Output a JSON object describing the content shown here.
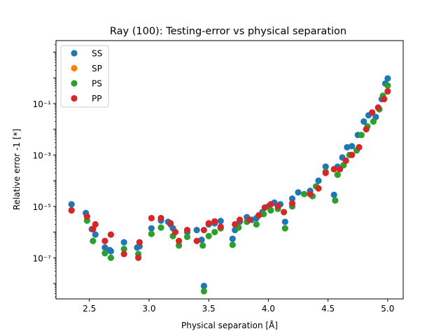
{
  "chart_data": {
    "type": "scatter",
    "title": "Ray (100): Testing-error vs physical separation",
    "xlabel": "Physical separation [Å]",
    "ylabel": "Relative error -1 [*]",
    "xlim": [
      2.22,
      5.13
    ],
    "ylim_log10": [
      -8.6,
      1.45
    ],
    "yscale": "log",
    "x_ticks": [
      2.5,
      3.0,
      3.5,
      4.0,
      4.5,
      5.0
    ],
    "x_tick_labels": [
      "2.5",
      "3.0",
      "3.5",
      "4.0",
      "4.5",
      "5.0"
    ],
    "y_ticks_log10": [
      -7,
      -5,
      -3,
      -1
    ],
    "y_tick_labels": [
      "10⁻⁷",
      "10⁻⁵",
      "10⁻³",
      "10⁻¹"
    ],
    "legend": {
      "position": "top-left"
    },
    "series": [
      {
        "name": "SS",
        "color": "#1f77b4",
        "points": [
          [
            2.35,
            1.2e-05
          ],
          [
            2.47,
            5.5e-06
          ],
          [
            2.48,
            4e-06
          ],
          [
            2.52,
            1.3e-06
          ],
          [
            2.55,
            8e-07
          ],
          [
            2.63,
            2.5e-07
          ],
          [
            2.67,
            2e-07
          ],
          [
            2.68,
            1.8e-07
          ],
          [
            2.79,
            4e-07
          ],
          [
            2.9,
            2.5e-07
          ],
          [
            2.92,
            2.8e-07
          ],
          [
            3.02,
            1.4e-06
          ],
          [
            3.1,
            2.8e-06
          ],
          [
            3.16,
            2.5e-06
          ],
          [
            3.18,
            2e-06
          ],
          [
            3.2,
            1.4e-06
          ],
          [
            3.32,
            1e-06
          ],
          [
            3.4,
            1.2e-06
          ],
          [
            3.44,
            5e-07
          ],
          [
            3.46,
            8e-09
          ],
          [
            3.5,
            2e-06
          ],
          [
            3.55,
            2.2e-06
          ],
          [
            3.6,
            2.7e-06
          ],
          [
            3.7,
            5.5e-07
          ],
          [
            3.72,
            1.2e-06
          ],
          [
            3.76,
            2.5e-06
          ],
          [
            3.82,
            3.8e-06
          ],
          [
            3.86,
            3e-06
          ],
          [
            3.9,
            3.5e-06
          ],
          [
            3.95,
            6e-06
          ],
          [
            4.0,
            1e-05
          ],
          [
            4.05,
            1.4e-05
          ],
          [
            4.1,
            1.2e-05
          ],
          [
            4.14,
            2.5e-06
          ],
          [
            4.2,
            2e-05
          ],
          [
            4.25,
            3.5e-05
          ],
          [
            4.35,
            4e-05
          ],
          [
            4.42,
            0.0001
          ],
          [
            4.48,
            0.00035
          ],
          [
            4.55,
            2.8e-05
          ],
          [
            4.58,
            0.00035
          ],
          [
            4.62,
            0.0008
          ],
          [
            4.66,
            0.002
          ],
          [
            4.7,
            0.0022
          ],
          [
            4.75,
            0.006
          ],
          [
            4.8,
            0.02
          ],
          [
            4.84,
            0.035
          ],
          [
            4.9,
            0.03
          ],
          [
            4.95,
            0.15
          ],
          [
            4.98,
            0.6
          ],
          [
            5.0,
            0.95
          ]
        ]
      },
      {
        "name": "SP",
        "color": "#ff7f0e",
        "points": []
      },
      {
        "name": "PS",
        "color": "#2ca02c",
        "points": [
          [
            2.35,
            7e-06
          ],
          [
            2.48,
            2.8e-06
          ],
          [
            2.53,
            4.5e-07
          ],
          [
            2.63,
            1.5e-07
          ],
          [
            2.68,
            1e-07
          ],
          [
            2.79,
            2.2e-07
          ],
          [
            2.91,
            1.4e-07
          ],
          [
            3.02,
            8.5e-07
          ],
          [
            3.1,
            1.5e-06
          ],
          [
            3.2,
            7e-07
          ],
          [
            3.25,
            3e-07
          ],
          [
            3.32,
            6.5e-07
          ],
          [
            3.45,
            3e-07
          ],
          [
            3.46,
            5e-09
          ],
          [
            3.5,
            7e-07
          ],
          [
            3.55,
            1e-06
          ],
          [
            3.6,
            1.4e-06
          ],
          [
            3.7,
            3.2e-07
          ],
          [
            3.75,
            1.5e-06
          ],
          [
            3.82,
            2.5e-06
          ],
          [
            3.9,
            2e-06
          ],
          [
            3.96,
            5e-06
          ],
          [
            4.02,
            7e-06
          ],
          [
            4.08,
            8e-06
          ],
          [
            4.14,
            1.4e-06
          ],
          [
            4.2,
            1e-05
          ],
          [
            4.3,
            3e-05
          ],
          [
            4.37,
            2.5e-05
          ],
          [
            4.4,
            6e-05
          ],
          [
            4.48,
            0.00022
          ],
          [
            4.56,
            1.7e-05
          ],
          [
            4.58,
            0.00017
          ],
          [
            4.63,
            0.0004
          ],
          [
            4.68,
            0.001
          ],
          [
            4.74,
            0.0015
          ],
          [
            4.78,
            0.006
          ],
          [
            4.83,
            0.013
          ],
          [
            4.88,
            0.02
          ],
          [
            4.93,
            0.06
          ],
          [
            4.96,
            0.2
          ],
          [
            5.0,
            0.5
          ]
        ]
      },
      {
        "name": "PP",
        "color": "#d62728",
        "points": [
          [
            2.35,
            7e-06
          ],
          [
            2.48,
            4e-06
          ],
          [
            2.53,
            1.3e-06
          ],
          [
            2.55,
            2e-06
          ],
          [
            2.63,
            4.5e-07
          ],
          [
            2.68,
            8e-07
          ],
          [
            2.79,
            1.4e-07
          ],
          [
            2.91,
            1e-07
          ],
          [
            2.92,
            4e-07
          ],
          [
            3.02,
            3.5e-06
          ],
          [
            3.1,
            3.5e-06
          ],
          [
            3.18,
            2.2e-06
          ],
          [
            3.22,
            1e-06
          ],
          [
            3.25,
            4.5e-07
          ],
          [
            3.32,
            1.2e-06
          ],
          [
            3.4,
            4.5e-07
          ],
          [
            3.46,
            1.2e-06
          ],
          [
            3.5,
            2.2e-06
          ],
          [
            3.55,
            2.6e-06
          ],
          [
            3.6,
            1.6e-06
          ],
          [
            3.72,
            2e-06
          ],
          [
            3.76,
            3e-06
          ],
          [
            3.84,
            3e-06
          ],
          [
            3.92,
            4.5e-06
          ],
          [
            3.97,
            9e-06
          ],
          [
            4.02,
            1.2e-05
          ],
          [
            4.08,
            1e-05
          ],
          [
            4.13,
            6e-06
          ],
          [
            4.2,
            1.3e-05
          ],
          [
            4.35,
            3e-05
          ],
          [
            4.42,
            5e-05
          ],
          [
            4.48,
            0.0002
          ],
          [
            4.55,
            0.00028
          ],
          [
            4.6,
            0.00028
          ],
          [
            4.65,
            0.0006
          ],
          [
            4.7,
            0.001
          ],
          [
            4.76,
            0.002
          ],
          [
            4.82,
            0.01
          ],
          [
            4.87,
            0.045
          ],
          [
            4.92,
            0.07
          ],
          [
            4.97,
            0.15
          ],
          [
            5.0,
            0.3
          ]
        ]
      }
    ]
  }
}
